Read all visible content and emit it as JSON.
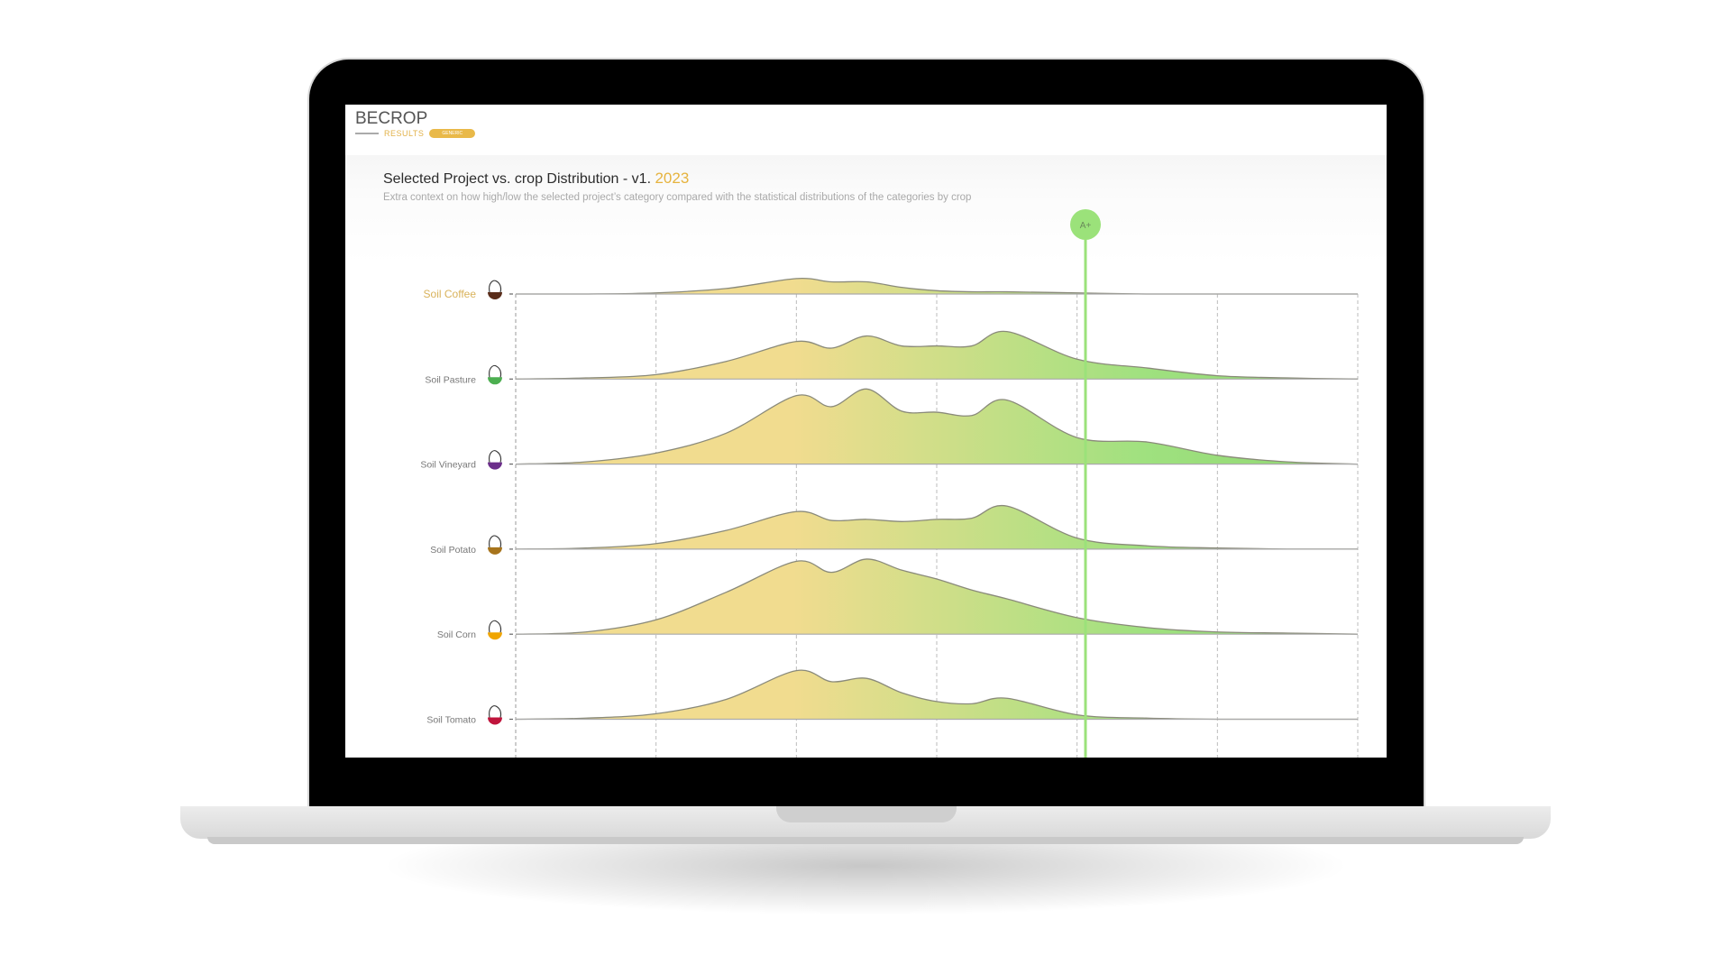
{
  "app": {
    "logo": "BECROP",
    "section": "RESULTS",
    "badge": "GENERIC"
  },
  "header": {
    "title": "Selected Project vs. crop Distribution - v1.",
    "year": "2023",
    "subtitle": "Extra context on how high/low the selected project’s category compared with the statistical distributions of the categories by crop"
  },
  "colors": {
    "accent": "#e6b33e",
    "marker": "#9be27a",
    "fill_low": "#f1dc8f",
    "fill_high": "#9fe17f",
    "highlight_label": "#d9b25a"
  },
  "marker": {
    "label": "A+",
    "value": 4.06
  },
  "chart_data": {
    "type": "ridgeline",
    "x_range": [
      0,
      6
    ],
    "x_gridlines": [
      0,
      1,
      2,
      3,
      4,
      5,
      6
    ],
    "grid": true,
    "x": [
      0,
      0.5,
      1,
      1.5,
      2,
      2.25,
      2.5,
      2.75,
      3,
      3.25,
      3.5,
      4,
      4.5,
      5,
      5.5,
      6
    ],
    "series": [
      {
        "name": "Soil Coffee",
        "icon": "coffee-icon",
        "icon_color": "#5a2d1a",
        "highlighted": true,
        "values": [
          0,
          0,
          1,
          5,
          14,
          11,
          11,
          6,
          3,
          2,
          2,
          1,
          0,
          0,
          0,
          0
        ]
      },
      {
        "name": "Soil Pasture",
        "icon": "pasture-icon",
        "icon_color": "#4caf50",
        "highlighted": false,
        "values": [
          0,
          1,
          4,
          16,
          34,
          28,
          39,
          30,
          30,
          30,
          43,
          18,
          10,
          3,
          1,
          0
        ]
      },
      {
        "name": "Soil Vineyard",
        "icon": "vineyard-icon",
        "icon_color": "#6b2d8a",
        "highlighted": false,
        "values": [
          0,
          2,
          10,
          28,
          62,
          52,
          68,
          48,
          47,
          44,
          58,
          24,
          20,
          8,
          2,
          0
        ]
      },
      {
        "name": "Soil Potato",
        "icon": "potato-icon",
        "icon_color": "#a7741c",
        "highlighted": false,
        "values": [
          0,
          1,
          5,
          17,
          34,
          26,
          27,
          25,
          27,
          28,
          39,
          10,
          3,
          1,
          0,
          0
        ]
      },
      {
        "name": "Soil Corn",
        "icon": "corn-icon",
        "icon_color": "#f0a500",
        "highlighted": false,
        "values": [
          0,
          2,
          13,
          38,
          66,
          56,
          68,
          58,
          50,
          40,
          32,
          15,
          6,
          2,
          1,
          0
        ]
      },
      {
        "name": "Soil Tomato",
        "icon": "tomato-icon",
        "icon_color": "#c0143c",
        "highlighted": false,
        "values": [
          0,
          1,
          5,
          18,
          44,
          34,
          37,
          24,
          16,
          14,
          19,
          4,
          1,
          0,
          0,
          0
        ]
      }
    ]
  }
}
